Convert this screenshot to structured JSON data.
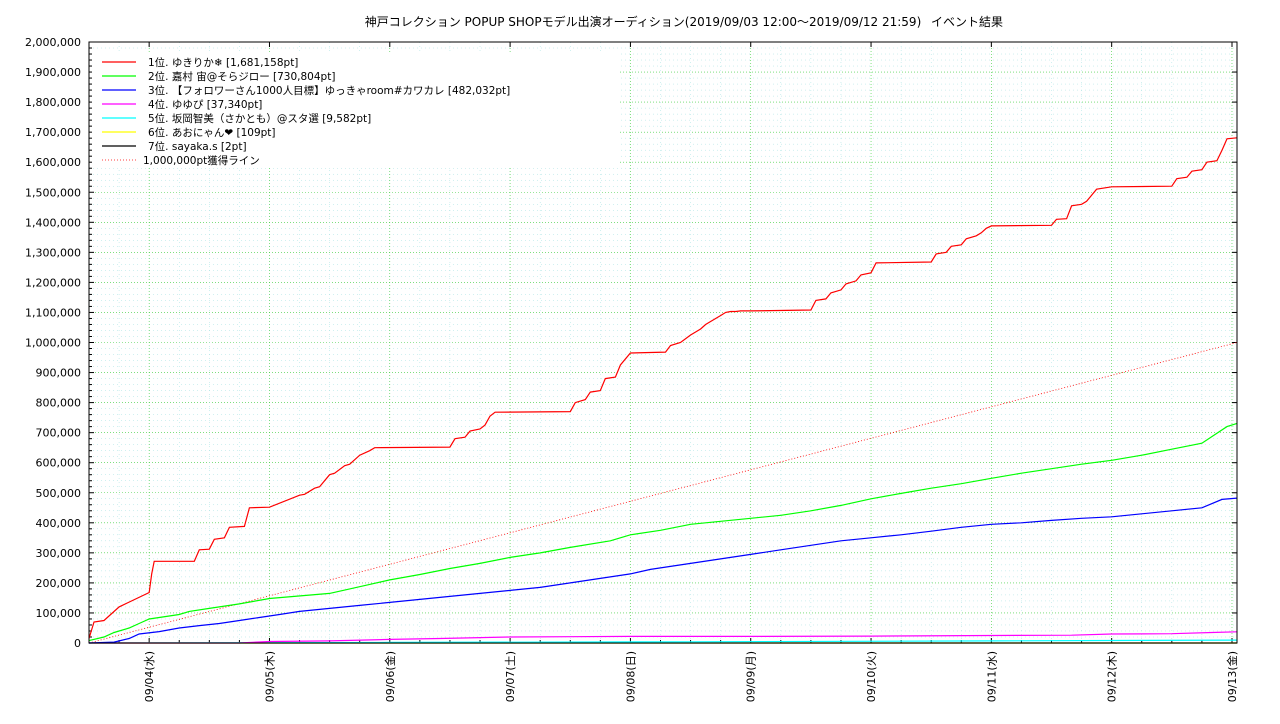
{
  "chart_data": {
    "type": "line",
    "title_main": "神戸コレクション POPUP SHOPモデル出演オーディション(2019/09/03 12:00～2019/09/12 21:59)",
    "title_side": "イベント結果",
    "xlabel": "",
    "ylabel": "",
    "x_unit": "hours since 2019/09/03 12:00",
    "xlim": [
      0,
      229
    ],
    "ylim": [
      0,
      2000000
    ],
    "y_ticks": [
      0,
      100000,
      200000,
      300000,
      400000,
      500000,
      600000,
      700000,
      800000,
      900000,
      1000000,
      1100000,
      1200000,
      1300000,
      1400000,
      1500000,
      1600000,
      1700000,
      1800000,
      1900000,
      2000000
    ],
    "y_tick_labels": [
      "0",
      "100,000",
      "200,000",
      "300,000",
      "400,000",
      "500,000",
      "600,000",
      "700,000",
      "800,000",
      "900,000",
      "1,000,000",
      "1,100,000",
      "1,200,000",
      "1,300,000",
      "1,400,000",
      "1,500,000",
      "1,600,000",
      "1,700,000",
      "1,800,000",
      "1,900,000",
      "2,000,000"
    ],
    "x_ticks": [
      12,
      36,
      60,
      84,
      108,
      132,
      156,
      180,
      204,
      228
    ],
    "x_tick_labels": [
      "09/04(水)",
      "09/05(木)",
      "09/06(金)",
      "09/07(土)",
      "09/08(日)",
      "09/09(月)",
      "09/10(火)",
      "09/11(水)",
      "09/12(木)",
      "09/13(金)"
    ],
    "grid": true,
    "legend_position": "top-left",
    "series": [
      {
        "name": "1位. ゆきりか❄ [1,681,158pt]",
        "color": "#ff0000",
        "x": [
          0,
          1,
          3,
          6,
          12,
          12.5,
          13,
          21,
          22,
          24,
          25,
          27,
          28,
          31,
          32,
          36,
          42,
          43,
          45,
          46,
          48,
          49,
          51,
          52,
          54,
          56,
          57,
          72,
          73,
          75,
          76,
          78,
          79,
          80,
          81,
          96,
          97,
          99,
          100,
          102,
          103,
          105,
          106,
          108,
          115,
          116,
          118,
          120,
          121,
          122,
          123,
          124,
          126,
          127,
          128,
          129,
          130,
          132,
          144,
          145,
          147,
          148,
          150,
          151,
          153,
          154,
          156,
          157,
          168,
          169,
          171,
          172,
          174,
          175,
          177,
          178,
          179,
          180,
          192,
          193,
          195,
          196,
          198,
          199,
          200,
          201,
          204,
          216,
          217,
          219,
          220,
          222,
          223,
          225,
          226,
          227,
          229
        ],
        "y": [
          15000,
          70000,
          75000,
          120000,
          168000,
          230000,
          272000,
          272000,
          310000,
          312000,
          345000,
          350000,
          385000,
          388000,
          450000,
          452000,
          492000,
          495000,
          515000,
          520000,
          560000,
          565000,
          590000,
          595000,
          625000,
          640000,
          650000,
          652000,
          680000,
          685000,
          705000,
          712000,
          725000,
          755000,
          768000,
          770000,
          800000,
          810000,
          835000,
          840000,
          880000,
          885000,
          925000,
          965000,
          968000,
          990000,
          1000000,
          1025000,
          1035000,
          1045000,
          1060000,
          1070000,
          1090000,
          1100000,
          1103000,
          1103000,
          1105000,
          1105000,
          1108000,
          1140000,
          1145000,
          1165000,
          1175000,
          1195000,
          1205000,
          1225000,
          1232000,
          1265000,
          1268000,
          1295000,
          1300000,
          1320000,
          1325000,
          1345000,
          1355000,
          1365000,
          1380000,
          1388000,
          1390000,
          1410000,
          1412000,
          1455000,
          1460000,
          1470000,
          1490000,
          1510000,
          1518000,
          1520000,
          1545000,
          1550000,
          1570000,
          1575000,
          1600000,
          1605000,
          1640000,
          1678000,
          1681158
        ]
      },
      {
        "name": "2位. 嘉村 宙@そらジロー [730,804pt]",
        "color": "#00ff00",
        "x": [
          0,
          3,
          5,
          8,
          10,
          12,
          18,
          20,
          24,
          28,
          30,
          36,
          48,
          52,
          56,
          60,
          66,
          72,
          78,
          84,
          90,
          96,
          104,
          108,
          114,
          120,
          126,
          132,
          138,
          144,
          150,
          156,
          162,
          168,
          174,
          180,
          186,
          192,
          198,
          204,
          210,
          216,
          222,
          227,
          229
        ],
        "y": [
          8000,
          20000,
          35000,
          50000,
          65000,
          80000,
          95000,
          105000,
          115000,
          125000,
          130000,
          148000,
          165000,
          180000,
          195000,
          210000,
          228000,
          248000,
          265000,
          285000,
          300000,
          318000,
          340000,
          360000,
          375000,
          395000,
          405000,
          415000,
          425000,
          440000,
          458000,
          480000,
          498000,
          515000,
          530000,
          548000,
          565000,
          580000,
          595000,
          608000,
          625000,
          645000,
          665000,
          720000,
          730804
        ]
      },
      {
        "name": "3位. 【フォロワーさん1000人目標】ゆっきゃroom#カワカレ [482,032pt]",
        "color": "#0000ff",
        "x": [
          0,
          5,
          8,
          10,
          14,
          18,
          22,
          26,
          30,
          34,
          38,
          42,
          48,
          54,
          60,
          66,
          72,
          78,
          84,
          90,
          96,
          102,
          108,
          112,
          116,
          120,
          124,
          128,
          132,
          138,
          144,
          150,
          156,
          162,
          168,
          174,
          180,
          186,
          192,
          198,
          204,
          210,
          216,
          222,
          226,
          229
        ],
        "y": [
          0,
          3000,
          15000,
          30000,
          38000,
          50000,
          58000,
          65000,
          75000,
          85000,
          95000,
          105000,
          115000,
          125000,
          135000,
          145000,
          155000,
          165000,
          175000,
          185000,
          200000,
          215000,
          230000,
          245000,
          255000,
          265000,
          275000,
          285000,
          295000,
          310000,
          325000,
          340000,
          350000,
          360000,
          372000,
          385000,
          395000,
          400000,
          408000,
          415000,
          420000,
          430000,
          440000,
          450000,
          478000,
          482032
        ]
      },
      {
        "name": "4位. ゆゆぴ [37,340pt]",
        "color": "#ff00ff",
        "x": [
          0,
          30,
          36,
          48,
          60,
          70,
          84,
          96,
          108,
          132,
          156,
          180,
          196,
          204,
          216,
          224,
          229
        ],
        "y": [
          0,
          0,
          5000,
          7000,
          12000,
          15000,
          20000,
          21000,
          22000,
          22000,
          23000,
          25000,
          26000,
          30000,
          31000,
          35000,
          37340
        ]
      },
      {
        "name": "5位. 坂岡智美（さかとも）@スタ選 [9,582pt]",
        "color": "#00ffff",
        "x": [
          0,
          60,
          120,
          180,
          229
        ],
        "y": [
          0,
          2000,
          4000,
          7000,
          9582
        ]
      },
      {
        "name": "6位. あおにゃん❤ [109pt]",
        "color": "#ffff00",
        "x": [
          0,
          229
        ],
        "y": [
          0,
          109
        ]
      },
      {
        "name": "7位. sayaka.s [2pt]",
        "color": "#000000",
        "x": [
          0,
          229
        ],
        "y": [
          0,
          2
        ]
      },
      {
        "name": "1,000,000pt獲得ライン",
        "color": "#ff0000",
        "dashed": true,
        "x": [
          0,
          229
        ],
        "y": [
          0,
          1000000
        ]
      }
    ]
  }
}
